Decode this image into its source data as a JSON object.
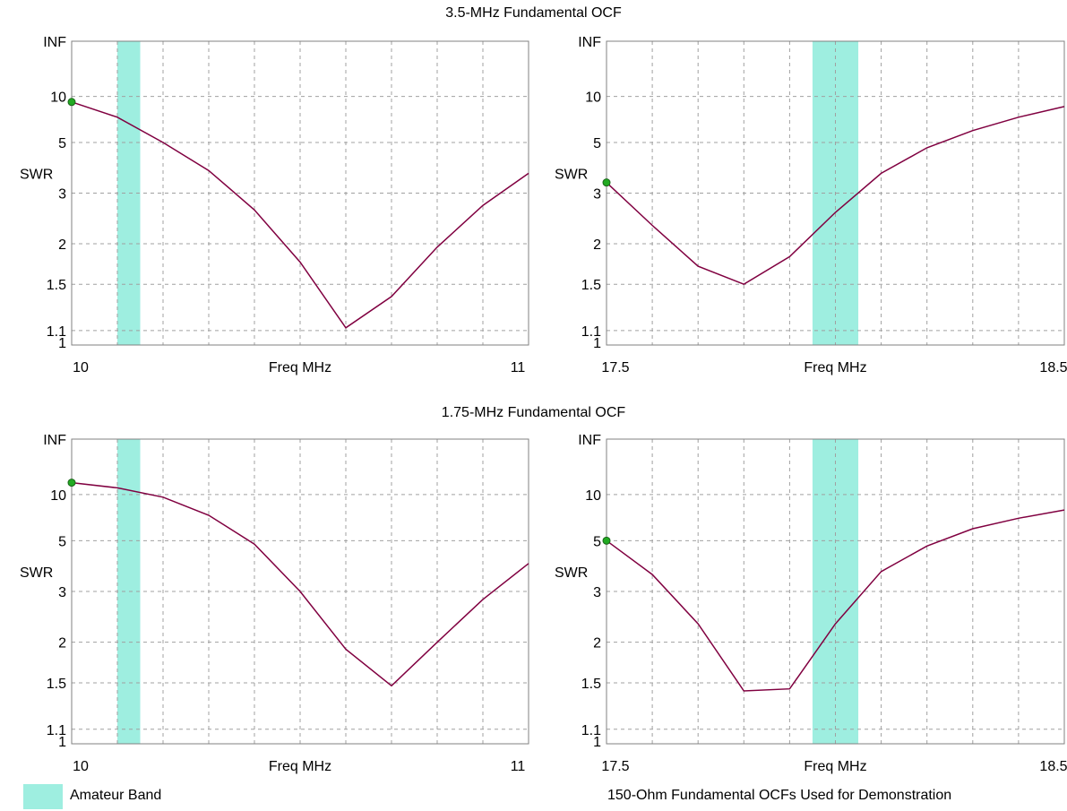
{
  "titles": [
    "3.5-MHz Fundamental OCF",
    "1.75-MHz Fundamental OCF"
  ],
  "legend": {
    "label": "Amateur Band",
    "color": "#9eeee0"
  },
  "footnote": "150-Ohm Fundamental OCFs Used for Demonstration",
  "colors": {
    "trace": "#800040",
    "marker": "#22aa22",
    "band": "#9eeee0",
    "grid": "#a0a0a0"
  },
  "chart_data": [
    {
      "type": "line",
      "group": "3.5-MHz Fundamental OCF",
      "xlabel": "Freq MHz",
      "ylabel": "SWR",
      "xlim": [
        10,
        11
      ],
      "x_ticks": [
        "10",
        "11"
      ],
      "y_ticks": [
        "INF",
        "10",
        "5",
        "3",
        "2",
        "1.5",
        "1.1",
        "1"
      ],
      "y_scale": "swr",
      "band": [
        10.1,
        10.15
      ],
      "x": [
        10.0,
        10.1,
        10.2,
        10.3,
        10.4,
        10.5,
        10.6,
        10.7,
        10.8,
        10.9,
        11.0
      ],
      "y": [
        9.0,
        7.0,
        5.0,
        3.7,
        2.6,
        1.75,
        1.12,
        1.38,
        1.95,
        2.7,
        3.6
      ]
    },
    {
      "type": "line",
      "group": "3.5-MHz Fundamental OCF",
      "xlabel": "Freq MHz",
      "ylabel": "SWR",
      "xlim": [
        17.5,
        18.5
      ],
      "x_ticks": [
        "17.5",
        "18.5"
      ],
      "y_ticks": [
        "INF",
        "10",
        "5",
        "3",
        "2",
        "1.5",
        "1.1",
        "1"
      ],
      "y_scale": "swr",
      "band": [
        17.95,
        18.05
      ],
      "x": [
        17.5,
        17.6,
        17.7,
        17.8,
        17.9,
        18.0,
        18.1,
        18.2,
        18.3,
        18.4,
        18.5
      ],
      "y": [
        3.3,
        2.3,
        1.7,
        1.5,
        1.82,
        2.55,
        3.6,
        4.7,
        5.8,
        7.0,
        8.3
      ]
    },
    {
      "type": "line",
      "group": "1.75-MHz Fundamental OCF",
      "xlabel": "Freq MHz",
      "ylabel": "SWR",
      "xlim": [
        10,
        11
      ],
      "x_ticks": [
        "10",
        "11"
      ],
      "y_ticks": [
        "INF",
        "10",
        "5",
        "3",
        "2",
        "1.5",
        "1.1",
        "1"
      ],
      "y_scale": "swr",
      "band": [
        10.1,
        10.15
      ],
      "x": [
        10.0,
        10.1,
        10.2,
        10.3,
        10.4,
        10.5,
        10.6,
        10.7,
        10.8,
        10.9,
        11.0
      ],
      "y": [
        13.0,
        11.5,
        9.5,
        7.0,
        4.8,
        3.0,
        1.9,
        1.47,
        2.0,
        2.8,
        3.9
      ]
    },
    {
      "type": "line",
      "group": "1.75-MHz Fundamental OCF",
      "xlabel": "Freq MHz",
      "ylabel": "SWR",
      "xlim": [
        17.5,
        18.5
      ],
      "x_ticks": [
        "17.5",
        "18.5"
      ],
      "y_ticks": [
        "INF",
        "10",
        "5",
        "3",
        "2",
        "1.5",
        "1.1",
        "1"
      ],
      "y_scale": "swr",
      "band": [
        17.95,
        18.05
      ],
      "x": [
        17.5,
        17.6,
        17.7,
        17.8,
        17.9,
        18.0,
        18.1,
        18.2,
        18.3,
        18.4,
        18.5
      ],
      "y": [
        5.0,
        3.5,
        2.3,
        1.42,
        1.44,
        2.3,
        3.6,
        4.7,
        5.8,
        6.7,
        7.6
      ]
    }
  ]
}
